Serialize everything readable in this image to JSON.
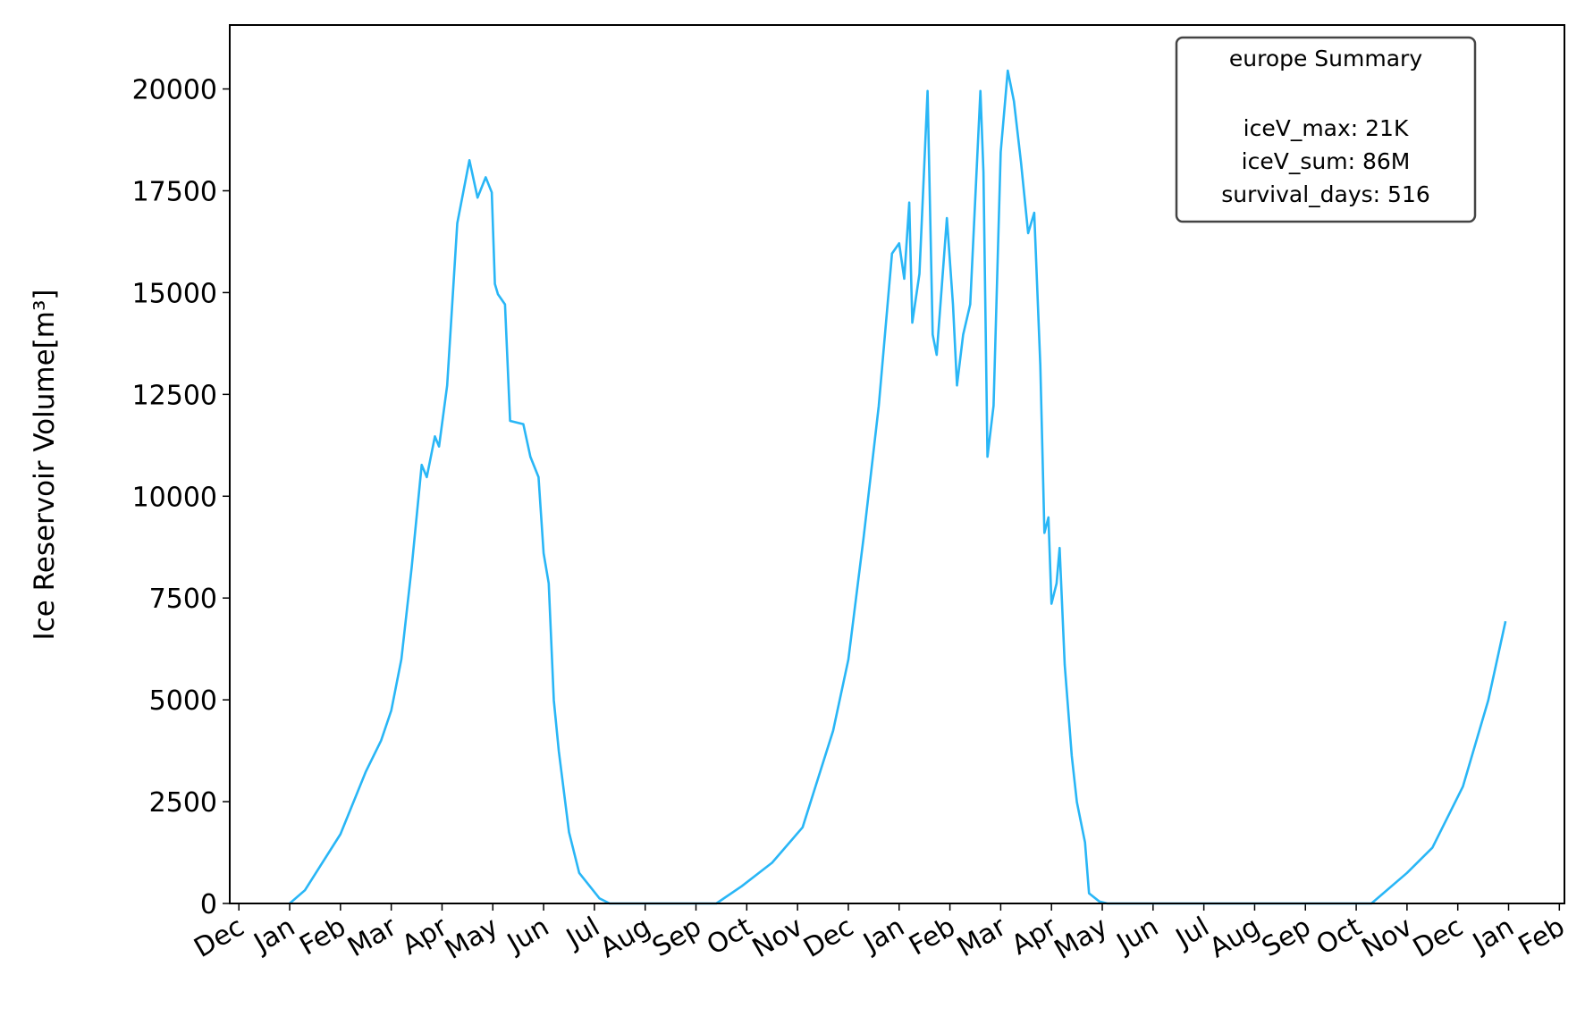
{
  "chart_data": {
    "type": "line",
    "ylabel": "Ice Reservoir Volume[m³]",
    "xlim": [
      -0.18,
      26.1
    ],
    "ylim": [
      0,
      21570
    ],
    "xticks": [
      {
        "value": 0,
        "label": "Dec"
      },
      {
        "value": 1,
        "label": "Jan"
      },
      {
        "value": 2,
        "label": "Feb"
      },
      {
        "value": 3,
        "label": "Mar"
      },
      {
        "value": 4,
        "label": "Apr"
      },
      {
        "value": 5,
        "label": "May"
      },
      {
        "value": 6,
        "label": "Jun"
      },
      {
        "value": 7,
        "label": "Jul"
      },
      {
        "value": 8,
        "label": "Aug"
      },
      {
        "value": 9,
        "label": "Sep"
      },
      {
        "value": 10,
        "label": "Oct"
      },
      {
        "value": 11,
        "label": "Nov"
      },
      {
        "value": 12,
        "label": "Dec"
      },
      {
        "value": 13,
        "label": "Jan"
      },
      {
        "value": 14,
        "label": "Feb"
      },
      {
        "value": 15,
        "label": "Mar"
      },
      {
        "value": 16,
        "label": "Apr"
      },
      {
        "value": 17,
        "label": "May"
      },
      {
        "value": 18,
        "label": "Jun"
      },
      {
        "value": 19,
        "label": "Jul"
      },
      {
        "value": 20,
        "label": "Aug"
      },
      {
        "value": 21,
        "label": "Sep"
      },
      {
        "value": 22,
        "label": "Oct"
      },
      {
        "value": 23,
        "label": "Nov"
      },
      {
        "value": 24,
        "label": "Dec"
      },
      {
        "value": 25,
        "label": "Jan"
      },
      {
        "value": 26,
        "label": "Feb"
      }
    ],
    "yticks": [
      0,
      2500,
      5000,
      7500,
      10000,
      12500,
      15000,
      17500,
      20000
    ],
    "summary": {
      "title": "europe Summary",
      "lines": [
        "iceV_max: 21K",
        "iceV_sum: 86M",
        "survival_days: 516"
      ]
    },
    "series": [
      {
        "color": "#29b6f6",
        "x": [
          1.0,
          1.3,
          2.0,
          2.5,
          2.8,
          3.0,
          3.2,
          3.4,
          3.6,
          3.7,
          3.86,
          3.94,
          4.1,
          4.3,
          4.54,
          4.7,
          4.86,
          4.98,
          5.04,
          5.1,
          5.24,
          5.34,
          5.6,
          5.74,
          5.9,
          6.0,
          6.1,
          6.2,
          6.3,
          6.5,
          6.7,
          7.1,
          7.3,
          9.4,
          9.9,
          10.5,
          11.1,
          11.7,
          12.0,
          12.3,
          12.6,
          12.86,
          13.0,
          13.1,
          13.2,
          13.26,
          13.4,
          13.56,
          13.66,
          13.74,
          13.94,
          14.06,
          14.14,
          14.26,
          14.4,
          14.5,
          14.6,
          14.66,
          14.74,
          14.86,
          15.0,
          15.14,
          15.26,
          15.4,
          15.54,
          15.66,
          15.78,
          15.86,
          15.94,
          16.0,
          16.1,
          16.16,
          16.26,
          16.4,
          16.5,
          16.66,
          16.74,
          16.94,
          17.1,
          22.3,
          23.0,
          23.5,
          24.1,
          24.6,
          24.94
        ],
        "values": [
          0,
          324,
          1700,
          3240,
          4000,
          4740,
          6000,
          8230,
          10770,
          10470,
          11470,
          11220,
          12720,
          16700,
          18250,
          17330,
          17830,
          17460,
          15210,
          14960,
          14710,
          11850,
          11770,
          10970,
          10470,
          8600,
          7860,
          4990,
          3740,
          1750,
          750,
          125,
          0,
          0,
          424,
          1000,
          1870,
          4240,
          5990,
          8980,
          12220,
          15960,
          16210,
          15340,
          17210,
          14260,
          15460,
          19950,
          13970,
          13470,
          16830,
          14710,
          12720,
          13970,
          14710,
          17330,
          19950,
          17960,
          10970,
          12220,
          18450,
          20450,
          19700,
          18200,
          16460,
          16960,
          13220,
          9100,
          9480,
          7360,
          7860,
          8730,
          5860,
          3620,
          2490,
          1500,
          250,
          50,
          0,
          0,
          750,
          1370,
          2870,
          4990,
          6930
        ]
      }
    ]
  }
}
